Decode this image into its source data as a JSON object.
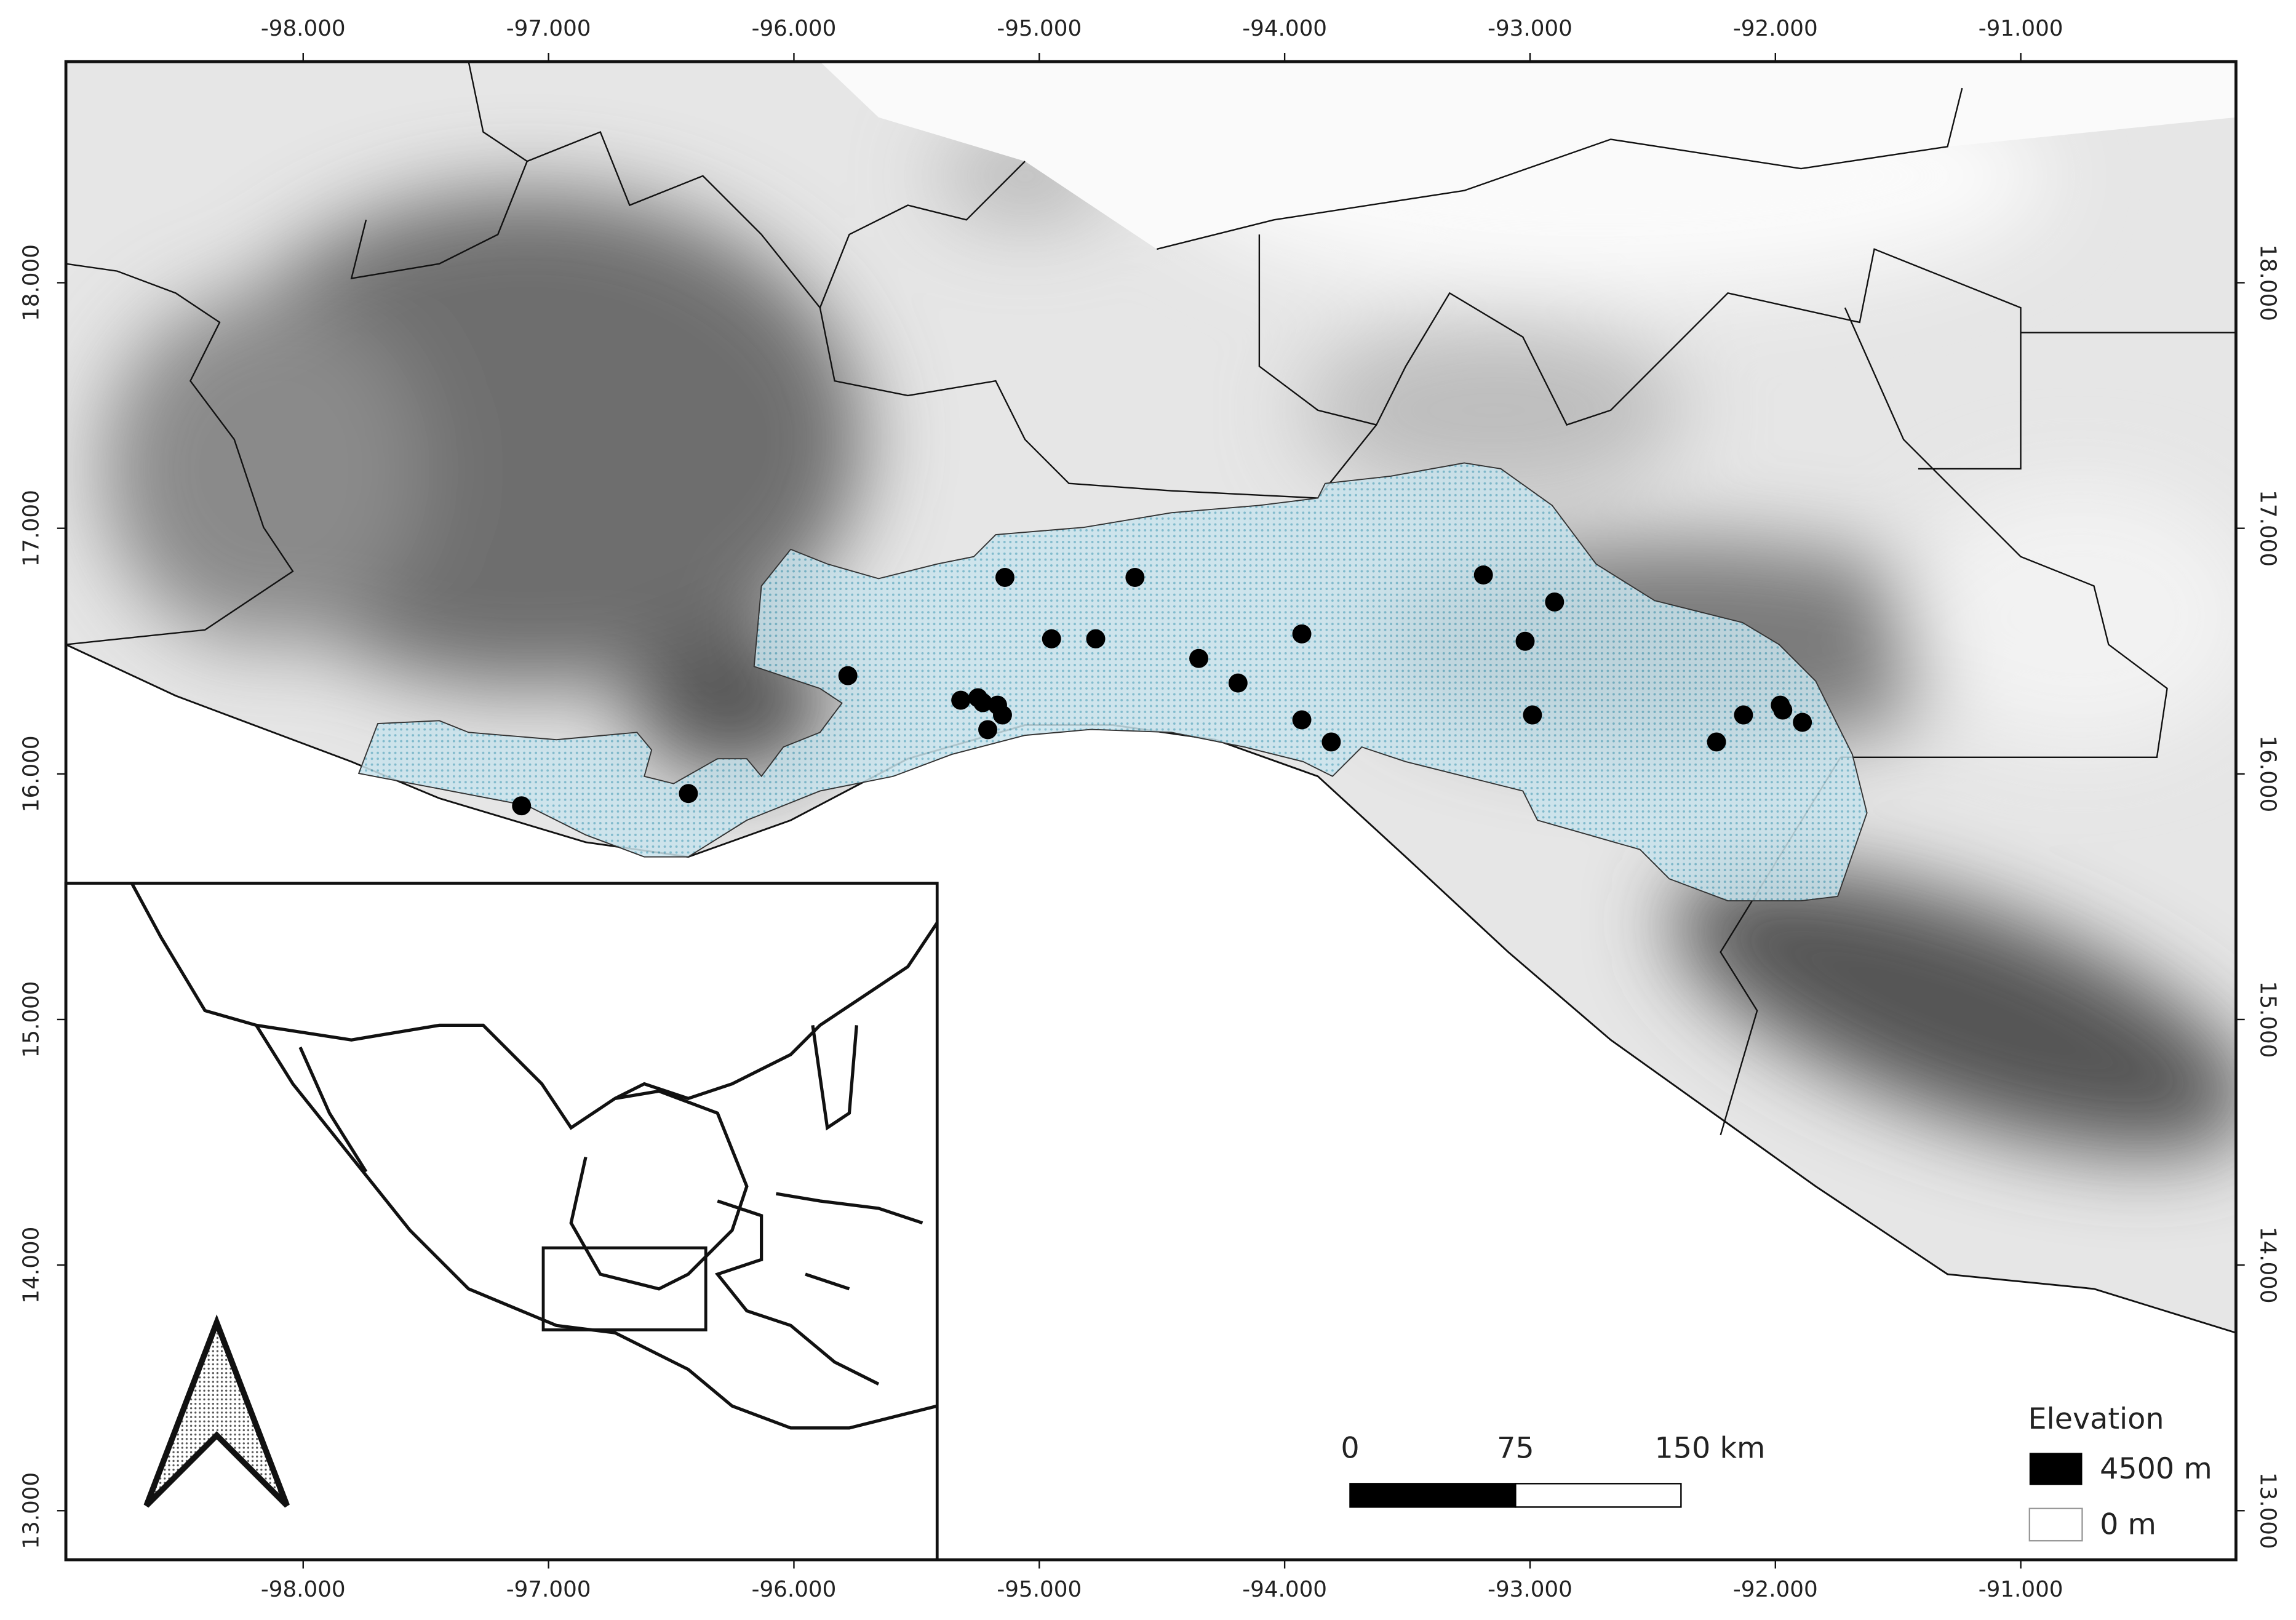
{
  "map": {
    "xlim": [
      -98.967,
      -90.123
    ],
    "ylim": [
      12.8,
      18.9
    ],
    "xticks": [
      {
        "value": -98,
        "label": "-98.000"
      },
      {
        "value": -97,
        "label": "-97.000"
      },
      {
        "value": -96,
        "label": "-96.000"
      },
      {
        "value": -95,
        "label": "-95.000"
      },
      {
        "value": -94,
        "label": "-94.000"
      },
      {
        "value": -93,
        "label": "-93.000"
      },
      {
        "value": -92,
        "label": "-92.000"
      },
      {
        "value": -91,
        "label": "-91.000"
      }
    ],
    "yticks": [
      {
        "value": 18,
        "label": "18.000"
      },
      {
        "value": 17,
        "label": "17.000"
      },
      {
        "value": 16,
        "label": "16.000"
      },
      {
        "value": 15,
        "label": "15.000"
      },
      {
        "value": 14,
        "label": "14.000"
      },
      {
        "value": 13,
        "label": "13.000"
      }
    ],
    "points": {
      "color": "#000000",
      "lon": [
        -95.14,
        -94.61,
        -94.95,
        -94.77,
        -94.35,
        -94.19,
        -93.93,
        -93.93,
        -93.81,
        -93.19,
        -92.9,
        -93.02,
        -92.99,
        -92.24,
        -92.13,
        -91.98,
        -91.97,
        -91.89,
        -95.78,
        -95.32,
        -95.25,
        -95.23,
        -95.17,
        -95.15,
        -95.21,
        -96.43,
        -97.11
      ],
      "lat": [
        16.8,
        16.8,
        16.55,
        16.55,
        16.47,
        16.37,
        16.57,
        16.22,
        16.13,
        16.81,
        16.7,
        16.54,
        16.24,
        16.13,
        16.24,
        16.28,
        16.26,
        16.21,
        16.4,
        16.3,
        16.31,
        16.29,
        16.28,
        16.24,
        16.18,
        15.92,
        15.87
      ]
    },
    "scale_bar": {
      "labels": [
        "0",
        "75",
        "150 km"
      ]
    },
    "legend": {
      "title": "Elevation",
      "high": "4500 m",
      "low": "0 m"
    }
  }
}
